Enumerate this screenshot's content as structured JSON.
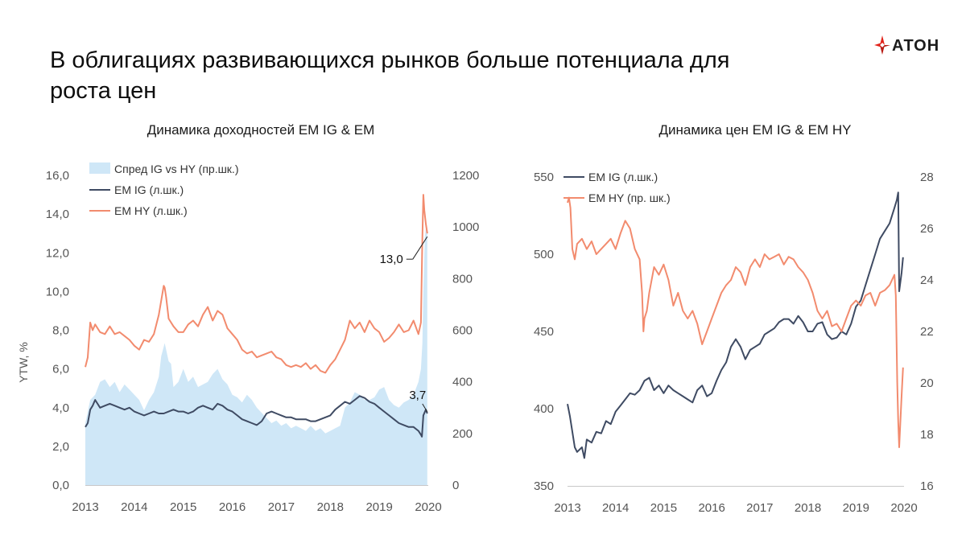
{
  "header": {
    "title": "В облигациях развивающихся рынков больше потенциала для роста цен",
    "logo_text": "АТОН"
  },
  "colors": {
    "ig": "#3f4b63",
    "hy": "#f28b6e",
    "spread": "#cfe7f7",
    "axis": "#c8c8c8",
    "logo_red": "#e2231a"
  },
  "chart_data": [
    {
      "type": "line",
      "title": "Динамика доходностей EM IG & EM",
      "ylabel": "YTW, %",
      "xlim": [
        2013,
        2020
      ],
      "ylim": [
        0,
        16
      ],
      "y2lim": [
        0,
        1200
      ],
      "x_ticks": [
        "2013",
        "2014",
        "2015",
        "2016",
        "2017",
        "2018",
        "2019",
        "2020"
      ],
      "y_ticks": [
        "0,0",
        "2,0",
        "4,0",
        "6,0",
        "8,0",
        "10,0",
        "12,0",
        "14,0",
        "16,0"
      ],
      "y2_ticks": [
        "0",
        "200",
        "400",
        "600",
        "800",
        "1000",
        "1200"
      ],
      "legend_position": "top-left",
      "series": [
        {
          "name": "Спред IG vs HY (пр.шк.)",
          "type": "area",
          "axis": "right",
          "color_key": "spread",
          "x": [
            2013.0,
            2013.1,
            2013.2,
            2013.3,
            2013.4,
            2013.5,
            2013.6,
            2013.7,
            2013.8,
            2013.9,
            2014.0,
            2014.1,
            2014.2,
            2014.3,
            2014.4,
            2014.5,
            2014.55,
            2014.62,
            2014.7,
            2014.75,
            2014.8,
            2014.9,
            2015.0,
            2015.1,
            2015.2,
            2015.3,
            2015.4,
            2015.5,
            2015.6,
            2015.7,
            2015.8,
            2015.9,
            2016.0,
            2016.1,
            2016.2,
            2016.3,
            2016.4,
            2016.5,
            2016.6,
            2016.7,
            2016.8,
            2016.9,
            2017.0,
            2017.1,
            2017.2,
            2017.3,
            2017.4,
            2017.5,
            2017.6,
            2017.7,
            2017.8,
            2017.9,
            2018.0,
            2018.1,
            2018.2,
            2018.3,
            2018.4,
            2018.5,
            2018.6,
            2018.7,
            2018.8,
            2018.9,
            2019.0,
            2019.1,
            2019.2,
            2019.3,
            2019.4,
            2019.5,
            2019.6,
            2019.7,
            2019.8,
            2019.85,
            2019.88,
            2019.9,
            2019.93,
            2019.96,
            2019.98
          ],
          "values": [
            240,
            330,
            350,
            400,
            410,
            380,
            400,
            360,
            390,
            370,
            350,
            330,
            290,
            330,
            360,
            420,
            500,
            550,
            480,
            470,
            380,
            400,
            450,
            400,
            420,
            380,
            390,
            400,
            430,
            450,
            410,
            390,
            350,
            340,
            320,
            350,
            330,
            300,
            280,
            260,
            240,
            250,
            230,
            240,
            220,
            230,
            220,
            210,
            230,
            210,
            220,
            200,
            210,
            220,
            230,
            300,
            320,
            360,
            350,
            330,
            330,
            340,
            370,
            380,
            330,
            310,
            300,
            320,
            330,
            350,
            400,
            450,
            550,
            750,
            960,
            1010,
            980
          ]
        },
        {
          "name": "EM IG (л.шк.)",
          "axis": "left",
          "color_key": "ig",
          "x": [
            2013.0,
            2013.05,
            2013.1,
            2013.15,
            2013.2,
            2013.25,
            2013.3,
            2013.4,
            2013.5,
            2013.6,
            2013.7,
            2013.8,
            2013.9,
            2014.0,
            2014.1,
            2014.2,
            2014.3,
            2014.4,
            2014.5,
            2014.6,
            2014.7,
            2014.8,
            2014.9,
            2015.0,
            2015.1,
            2015.2,
            2015.3,
            2015.4,
            2015.5,
            2015.6,
            2015.7,
            2015.8,
            2015.9,
            2016.0,
            2016.1,
            2016.2,
            2016.3,
            2016.4,
            2016.5,
            2016.6,
            2016.7,
            2016.8,
            2016.9,
            2017.0,
            2017.1,
            2017.2,
            2017.3,
            2017.4,
            2017.5,
            2017.6,
            2017.7,
            2017.8,
            2017.9,
            2018.0,
            2018.1,
            2018.2,
            2018.3,
            2018.4,
            2018.5,
            2018.6,
            2018.7,
            2018.8,
            2018.9,
            2019.0,
            2019.1,
            2019.2,
            2019.3,
            2019.4,
            2019.5,
            2019.6,
            2019.7,
            2019.8,
            2019.85,
            2019.87,
            2019.9,
            2019.95,
            2019.98
          ],
          "values": [
            3.0,
            3.2,
            3.9,
            4.1,
            4.4,
            4.2,
            4.0,
            4.1,
            4.2,
            4.1,
            4.0,
            3.9,
            4.0,
            3.8,
            3.7,
            3.6,
            3.7,
            3.8,
            3.7,
            3.7,
            3.8,
            3.9,
            3.8,
            3.8,
            3.7,
            3.8,
            4.0,
            4.1,
            4.0,
            3.9,
            4.2,
            4.1,
            3.9,
            3.8,
            3.6,
            3.4,
            3.3,
            3.2,
            3.1,
            3.3,
            3.7,
            3.8,
            3.7,
            3.6,
            3.5,
            3.5,
            3.4,
            3.4,
            3.4,
            3.3,
            3.3,
            3.4,
            3.5,
            3.6,
            3.9,
            4.1,
            4.3,
            4.2,
            4.4,
            4.6,
            4.5,
            4.3,
            4.2,
            4.0,
            3.8,
            3.6,
            3.4,
            3.2,
            3.1,
            3.0,
            3.0,
            2.8,
            2.6,
            2.5,
            3.6,
            3.9,
            3.7
          ]
        },
        {
          "name": "EM HY (л.шк.)",
          "axis": "left",
          "color_key": "hy",
          "x": [
            2013.0,
            2013.05,
            2013.1,
            2013.15,
            2013.2,
            2013.3,
            2013.4,
            2013.5,
            2013.6,
            2013.7,
            2013.8,
            2013.9,
            2014.0,
            2014.1,
            2014.2,
            2014.3,
            2014.4,
            2014.5,
            2014.6,
            2014.62,
            2014.65,
            2014.7,
            2014.8,
            2014.9,
            2015.0,
            2015.1,
            2015.2,
            2015.3,
            2015.4,
            2015.5,
            2015.6,
            2015.7,
            2015.8,
            2015.9,
            2016.0,
            2016.1,
            2016.2,
            2016.3,
            2016.4,
            2016.5,
            2016.6,
            2016.7,
            2016.8,
            2016.9,
            2017.0,
            2017.1,
            2017.2,
            2017.3,
            2017.4,
            2017.5,
            2017.6,
            2017.7,
            2017.8,
            2017.9,
            2018.0,
            2018.1,
            2018.2,
            2018.3,
            2018.4,
            2018.5,
            2018.6,
            2018.7,
            2018.8,
            2018.9,
            2019.0,
            2019.1,
            2019.2,
            2019.3,
            2019.4,
            2019.5,
            2019.6,
            2019.7,
            2019.8,
            2019.85,
            2019.88,
            2019.9,
            2019.92,
            2019.95,
            2019.98
          ],
          "values": [
            6.1,
            6.6,
            8.4,
            8.0,
            8.3,
            7.9,
            7.8,
            8.2,
            7.8,
            7.9,
            7.7,
            7.5,
            7.2,
            7.0,
            7.5,
            7.4,
            7.8,
            8.8,
            10.3,
            10.2,
            9.7,
            8.6,
            8.2,
            7.9,
            7.9,
            8.3,
            8.5,
            8.2,
            8.8,
            9.2,
            8.5,
            9.0,
            8.8,
            8.1,
            7.8,
            7.5,
            7.0,
            6.8,
            6.9,
            6.6,
            6.7,
            6.8,
            6.9,
            6.6,
            6.5,
            6.2,
            6.1,
            6.2,
            6.1,
            6.3,
            6.0,
            6.2,
            5.9,
            5.8,
            6.2,
            6.5,
            7.0,
            7.5,
            8.5,
            8.1,
            8.4,
            7.9,
            8.5,
            8.1,
            7.9,
            7.4,
            7.6,
            7.9,
            8.3,
            7.9,
            8.0,
            8.5,
            7.8,
            8.4,
            12.8,
            15.0,
            14.2,
            13.5,
            13.0
          ]
        }
      ],
      "annotations": [
        {
          "label": "13,0",
          "x": 2019.98,
          "y": 13.0
        },
        {
          "label": "3,7",
          "x": 2019.98,
          "y": 3.7
        }
      ]
    },
    {
      "type": "line",
      "title": "Динамика цен EM IG & EM HY",
      "xlim": [
        2013,
        2020
      ],
      "ylim": [
        350,
        550
      ],
      "y2lim": [
        16,
        28
      ],
      "x_ticks": [
        "2013",
        "2014",
        "2015",
        "2016",
        "2017",
        "2018",
        "2019",
        "2020"
      ],
      "y_ticks": [
        "350",
        "400",
        "450",
        "500",
        "550"
      ],
      "y2_ticks": [
        "16",
        "18",
        "20",
        "22",
        "24",
        "26",
        "28"
      ],
      "legend_position": "top-left",
      "series": [
        {
          "name": "EM IG (л.шк.)",
          "axis": "left",
          "color_key": "ig",
          "x": [
            2013.0,
            2013.05,
            2013.1,
            2013.15,
            2013.2,
            2013.3,
            2013.35,
            2013.4,
            2013.5,
            2013.6,
            2013.7,
            2013.8,
            2013.9,
            2014.0,
            2014.1,
            2014.2,
            2014.3,
            2014.4,
            2014.5,
            2014.6,
            2014.7,
            2014.8,
            2014.9,
            2015.0,
            2015.1,
            2015.2,
            2015.3,
            2015.4,
            2015.5,
            2015.6,
            2015.7,
            2015.8,
            2015.9,
            2016.0,
            2016.1,
            2016.2,
            2016.3,
            2016.4,
            2016.5,
            2016.6,
            2016.7,
            2016.8,
            2016.9,
            2017.0,
            2017.1,
            2017.2,
            2017.3,
            2017.4,
            2017.5,
            2017.6,
            2017.7,
            2017.8,
            2017.9,
            2018.0,
            2018.1,
            2018.2,
            2018.3,
            2018.4,
            2018.5,
            2018.6,
            2018.7,
            2018.8,
            2018.9,
            2019.0,
            2019.1,
            2019.2,
            2019.3,
            2019.4,
            2019.5,
            2019.6,
            2019.7,
            2019.8,
            2019.85,
            2019.88,
            2019.9,
            2019.95,
            2019.98
          ],
          "values": [
            403,
            395,
            385,
            375,
            372,
            375,
            368,
            380,
            378,
            385,
            384,
            392,
            390,
            398,
            402,
            406,
            410,
            409,
            412,
            418,
            420,
            412,
            415,
            410,
            415,
            412,
            410,
            408,
            406,
            404,
            412,
            415,
            408,
            410,
            418,
            425,
            430,
            440,
            445,
            440,
            432,
            438,
            440,
            442,
            448,
            450,
            452,
            456,
            458,
            458,
            455,
            460,
            456,
            450,
            450,
            455,
            456,
            448,
            445,
            446,
            450,
            448,
            455,
            466,
            470,
            480,
            490,
            500,
            510,
            515,
            520,
            530,
            535,
            540,
            476,
            488,
            498
          ]
        },
        {
          "name": "EM HY (пр. шк.)",
          "axis": "right",
          "color_key": "hy",
          "x": [
            2013.0,
            2013.03,
            2013.06,
            2013.1,
            2013.15,
            2013.2,
            2013.3,
            2013.4,
            2013.5,
            2013.6,
            2013.7,
            2013.8,
            2013.9,
            2014.0,
            2014.1,
            2014.2,
            2014.3,
            2014.4,
            2014.5,
            2014.55,
            2014.58,
            2014.6,
            2014.65,
            2014.7,
            2014.8,
            2014.9,
            2015.0,
            2015.1,
            2015.2,
            2015.3,
            2015.4,
            2015.5,
            2015.6,
            2015.7,
            2015.8,
            2015.9,
            2016.0,
            2016.1,
            2016.2,
            2016.3,
            2016.4,
            2016.5,
            2016.6,
            2016.7,
            2016.8,
            2016.9,
            2017.0,
            2017.1,
            2017.2,
            2017.3,
            2017.4,
            2017.5,
            2017.6,
            2017.7,
            2017.8,
            2017.9,
            2018.0,
            2018.1,
            2018.2,
            2018.3,
            2018.4,
            2018.5,
            2018.6,
            2018.7,
            2018.8,
            2018.9,
            2019.0,
            2019.1,
            2019.2,
            2019.3,
            2019.4,
            2019.5,
            2019.6,
            2019.7,
            2019.75,
            2019.8,
            2019.83,
            2019.86,
            2019.88,
            2019.9,
            2019.95,
            2019.98
          ],
          "values": [
            27.0,
            27.2,
            26.8,
            25.2,
            24.8,
            25.4,
            25.6,
            25.2,
            25.5,
            25.0,
            25.2,
            25.4,
            25.6,
            25.2,
            25.8,
            26.3,
            26.0,
            25.2,
            24.8,
            23.5,
            22.0,
            22.5,
            22.8,
            23.5,
            24.5,
            24.2,
            24.6,
            24.0,
            23.0,
            23.5,
            22.8,
            22.5,
            22.8,
            22.3,
            21.5,
            22.0,
            22.5,
            23.0,
            23.5,
            23.8,
            24.0,
            24.5,
            24.3,
            23.8,
            24.5,
            24.8,
            24.5,
            25.0,
            24.8,
            24.9,
            25.0,
            24.6,
            24.9,
            24.8,
            24.5,
            24.3,
            24.0,
            23.5,
            22.8,
            22.5,
            22.8,
            22.2,
            22.3,
            22.0,
            22.5,
            23.0,
            23.2,
            23.0,
            23.4,
            23.5,
            23.0,
            23.5,
            23.6,
            23.8,
            24.0,
            24.2,
            23.4,
            20.0,
            18.5,
            17.5,
            19.5,
            20.6
          ]
        }
      ]
    }
  ]
}
